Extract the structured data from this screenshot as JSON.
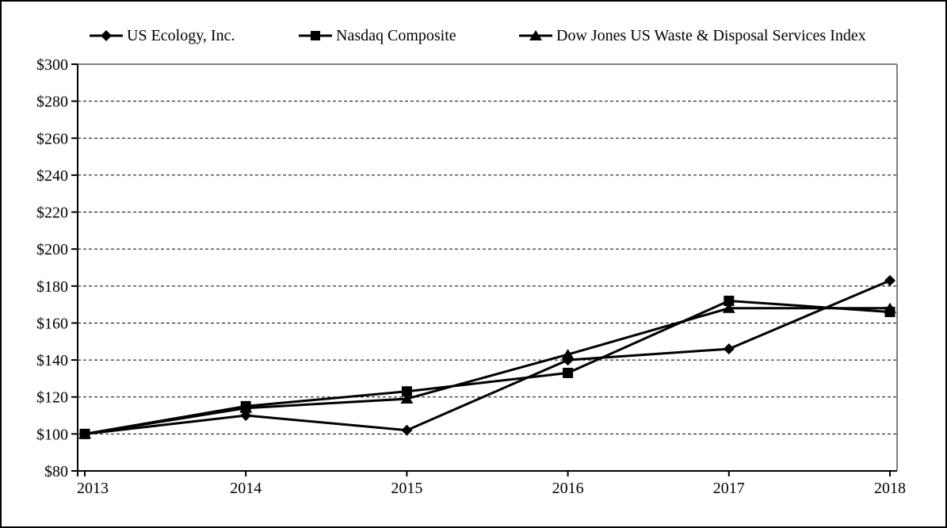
{
  "chart_data": {
    "type": "line",
    "title": "",
    "xlabel": "",
    "ylabel": "",
    "x_categories": [
      "2013",
      "2014",
      "2015",
      "2016",
      "2017",
      "2018"
    ],
    "y_axis": {
      "min": 80,
      "max": 300,
      "step": 20,
      "tick_prefix": "$",
      "tick_labels": [
        "$300",
        "$280",
        "$260",
        "$240",
        "$220",
        "$200",
        "$180",
        "$160",
        "$140",
        "$120",
        "$100",
        "$80"
      ]
    },
    "grid": "horizontal-dashed",
    "legend_position": "top",
    "series": [
      {
        "name": "US Ecology, Inc.",
        "marker": "diamond",
        "values": [
          100,
          110,
          102,
          140,
          146,
          183
        ]
      },
      {
        "name": "Nasdaq Composite",
        "marker": "square",
        "values": [
          100,
          115,
          123,
          133,
          172,
          166
        ]
      },
      {
        "name": "Dow Jones US Waste & Disposal Services Index",
        "marker": "triangle",
        "values": [
          100,
          114,
          119,
          143,
          168,
          168
        ]
      }
    ],
    "colors": {
      "line": "#000000",
      "marker": "#000000",
      "axis": "#000000",
      "plot_border": "#808080",
      "gridline": "#000000",
      "background": "#ffffff",
      "text": "#000000"
    }
  }
}
